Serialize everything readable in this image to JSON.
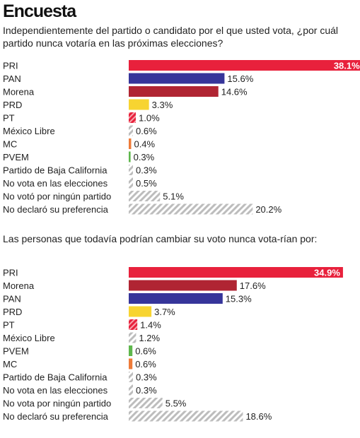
{
  "title": "Encuesta",
  "chart_data": [
    {
      "type": "bar",
      "orientation": "horizontal",
      "subtitle": "Independientemente del partido o candidato por el que usted vota, ¿por cuál partido nunca votaría en las próximas elecciones?",
      "categories": [
        "PRI",
        "PAN",
        "Morena",
        "PRD",
        "PT",
        "México Libre",
        "MC",
        "PVEM",
        "Partido de Baja California",
        "No vota en las elecciones",
        "No votó por ningún partido",
        "No declaró su preferencia"
      ],
      "values": [
        38.1,
        15.6,
        14.6,
        3.3,
        1.0,
        0.6,
        0.4,
        0.3,
        0.3,
        0.5,
        5.1,
        20.2
      ],
      "labels": [
        "38.1%",
        "15.6%",
        "14.6%",
        "3.3%",
        "1.0%",
        "0.6%",
        "0.4%",
        "0.3%",
        "0.3%",
        "0.5%",
        "5.1%",
        "20.2%"
      ],
      "colors": [
        "#e8213c",
        "#36359a",
        "#b02533",
        "#f7d431",
        "#e8213c",
        "#b9b9b9",
        "#ee7b39",
        "#5eb74c",
        "#b9b9b9",
        "#b9b9b9",
        "#b9b9b9",
        "#b9b9b9"
      ],
      "patterns": [
        "solid",
        "solid",
        "solid",
        "solid",
        "red-hatch",
        "hatch",
        "solid",
        "solid",
        "hatch",
        "hatch",
        "hatch",
        "hatch"
      ]
    },
    {
      "type": "bar",
      "orientation": "horizontal",
      "subtitle": "Las personas que todavía podrían cambiar su voto nunca vota-rían por:",
      "categories": [
        "PRI",
        "Morena",
        "PAN",
        "PRD",
        "PT",
        "México Libre",
        "PVEM",
        "MC",
        "Partido de Baja California",
        "No vota en las elecciones",
        "No vota por ningún partido",
        "No declaró su preferencia"
      ],
      "values": [
        34.9,
        17.6,
        15.3,
        3.7,
        1.4,
        1.2,
        0.6,
        0.6,
        0.3,
        0.3,
        5.5,
        18.6
      ],
      "labels": [
        "34.9%",
        "17.6%",
        "15.3%",
        "3.7%",
        "1.4%",
        "1.2%",
        "0.6%",
        "0.6%",
        "0.3%",
        "0.3%",
        "5.5%",
        "18.6%"
      ],
      "colors": [
        "#e8213c",
        "#b02533",
        "#36359a",
        "#f7d431",
        "#e8213c",
        "#b9b9b9",
        "#5eb74c",
        "#ee7b39",
        "#b9b9b9",
        "#b9b9b9",
        "#b9b9b9",
        "#b9b9b9"
      ],
      "patterns": [
        "solid",
        "solid",
        "solid",
        "solid",
        "red-hatch",
        "hatch",
        "solid",
        "solid",
        "hatch",
        "hatch",
        "hatch",
        "hatch"
      ]
    }
  ]
}
